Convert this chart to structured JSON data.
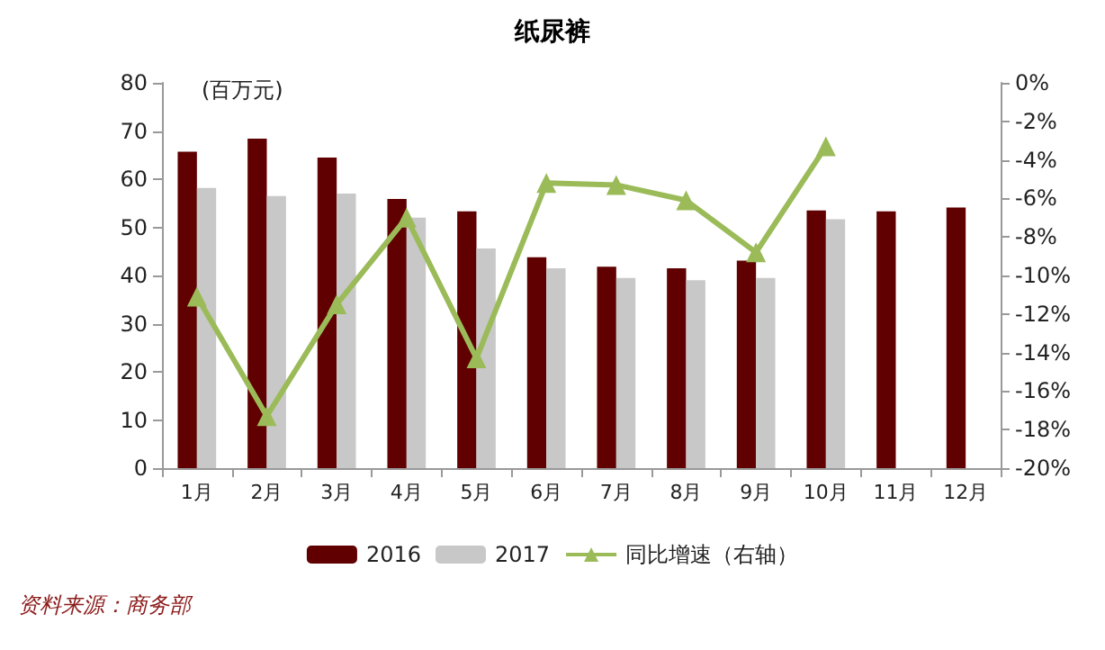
{
  "chart_data": {
    "type": "bar",
    "title": "纸尿裤",
    "ylabel": "(百万元)",
    "categories": [
      "1月",
      "2月",
      "3月",
      "4月",
      "5月",
      "6月",
      "7月",
      "8月",
      "9月",
      "10月",
      "11月",
      "12月"
    ],
    "series": [
      {
        "name": "2016",
        "color": "#600000",
        "values": [
          65.7,
          68.4,
          64.5,
          55.9,
          53.3,
          43.8,
          41.8,
          41.5,
          43.1,
          53.5,
          53.3,
          54.1
        ]
      },
      {
        "name": "2017",
        "color": "#c8c8c8",
        "values": [
          58.2,
          56.5,
          57.0,
          52.0,
          45.6,
          41.5,
          39.5,
          39.0,
          39.5,
          51.7,
          null,
          null
        ]
      },
      {
        "name": "同比增速（右轴）",
        "type": "line",
        "axis": "y2",
        "color": "#9bbb59",
        "marker": "triangle",
        "values": [
          -11.1,
          -17.3,
          -11.5,
          -7.0,
          -14.3,
          -5.2,
          -5.3,
          -6.1,
          -8.8,
          -3.3,
          null,
          null
        ]
      }
    ],
    "ylim": [
      0,
      80
    ],
    "yticks": [
      0,
      10,
      20,
      30,
      40,
      50,
      60,
      70,
      80
    ],
    "y2lim": [
      -20,
      0
    ],
    "y2ticks": [
      {
        "value": -20,
        "label": "-20%"
      },
      {
        "value": -18,
        "label": "-18%"
      },
      {
        "value": -16,
        "label": "-16%"
      },
      {
        "value": -14,
        "label": "-14%"
      },
      {
        "value": -12,
        "label": "-12%"
      },
      {
        "value": -10,
        "label": "-10%"
      },
      {
        "value": -8,
        "label": "-8%"
      },
      {
        "value": -6,
        "label": "-6%"
      },
      {
        "value": -4,
        "label": "-4%"
      },
      {
        "value": -2,
        "label": "-2%"
      },
      {
        "value": 0,
        "label": "0%"
      }
    ],
    "grid": false,
    "legend": "bottom",
    "annotations": [
      "资料来源：商务部"
    ]
  }
}
